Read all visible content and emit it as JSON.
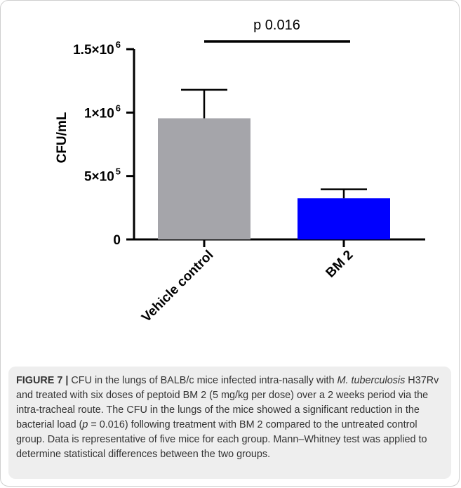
{
  "chart_data": {
    "type": "bar",
    "categories": [
      "Vehicle control",
      "BM 2"
    ],
    "values": [
      955000,
      325000
    ],
    "errors": [
      225000,
      70000
    ],
    "colors": [
      "#a5a5aa",
      "#0000ff"
    ],
    "ylabel": "CFU/mL",
    "xlabel": "",
    "ylim": [
      0,
      1500000
    ],
    "yticks": [
      {
        "value": 0,
        "base": "0",
        "exp": ""
      },
      {
        "value": 500000,
        "base": "5×10",
        "exp": "5"
      },
      {
        "value": 1000000,
        "base": "1×10",
        "exp": "6"
      },
      {
        "value": 1500000,
        "base": "1.5×10",
        "exp": "6"
      }
    ],
    "significance": {
      "text": "p 0.016",
      "from": 0,
      "to": 1
    }
  },
  "caption": {
    "label": "FIGURE 7 |",
    "text_1": " CFU in the lungs of BALB/c mice infected intra-nasally with ",
    "organism": "M. tuberculosis",
    "text_2": " H37Rv and treated with six doses of peptoid BM 2 (5 mg/kg per dose) over a 2 weeks period via the intra-tracheal route. The CFU in the lungs of the mice showed a significant reduction in the bacterial load (",
    "p_symbol": "p",
    "text_3": " = 0.016) following treatment with BM 2 compared to the untreated control group. Data is representative of five mice for each group. Mann–Whitney test was applied to determine statistical differences between the two groups."
  }
}
